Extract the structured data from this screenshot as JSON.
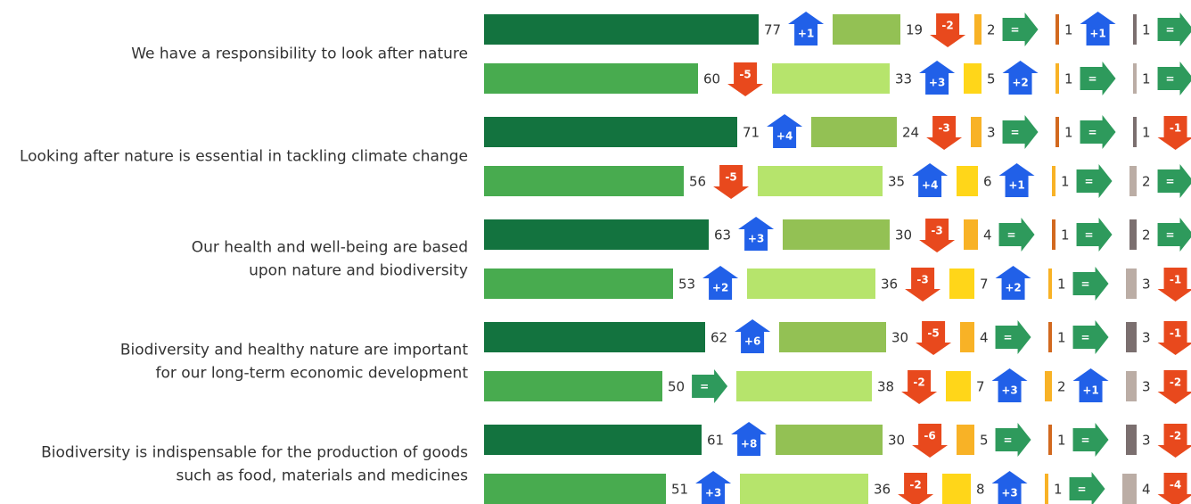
{
  "chart_data": {
    "type": "bar_change",
    "categories": [
      [
        "We have a responsibility to look after nature"
      ],
      [
        "Looking after nature is essential in tackling climate change"
      ],
      [
        "Our health and well-being are based",
        "upon nature and biodiversity"
      ],
      [
        "Biodiversity and healthy nature are important",
        "for our long-term economic development"
      ],
      [
        "Biodiversity is indispensable for the production of goods",
        "such as food, materials and medicines"
      ]
    ],
    "rows": [
      {
        "values": [
          77,
          19,
          2,
          1,
          1
        ],
        "changes": [
          1,
          -2,
          0,
          1,
          0
        ],
        "change_labels": [
          "+1",
          "-2",
          "=",
          "+1",
          "="
        ]
      },
      {
        "values": [
          60,
          33,
          5,
          1,
          1
        ],
        "changes": [
          -5,
          3,
          2,
          0,
          0
        ],
        "change_labels": [
          "-5",
          "+3",
          "+2",
          "=",
          "="
        ]
      },
      {
        "values": [
          71,
          24,
          3,
          1,
          1
        ],
        "changes": [
          4,
          -3,
          0,
          0,
          -1
        ],
        "change_labels": [
          "+4",
          "-3",
          "=",
          "=",
          "-1"
        ]
      },
      {
        "values": [
          56,
          35,
          6,
          1,
          2
        ],
        "changes": [
          -5,
          4,
          1,
          0,
          0
        ],
        "change_labels": [
          "-5",
          "+4",
          "+1",
          "=",
          "="
        ]
      },
      {
        "values": [
          63,
          30,
          4,
          1,
          2
        ],
        "changes": [
          3,
          -3,
          0,
          0,
          0
        ],
        "change_labels": [
          "+3",
          "-3",
          "=",
          "=",
          "="
        ]
      },
      {
        "values": [
          53,
          36,
          7,
          1,
          3
        ],
        "changes": [
          2,
          -3,
          2,
          0,
          -1
        ],
        "change_labels": [
          "+2",
          "-3",
          "+2",
          "=",
          "-1"
        ]
      },
      {
        "values": [
          62,
          30,
          4,
          1,
          3
        ],
        "changes": [
          6,
          -5,
          0,
          0,
          -1
        ],
        "change_labels": [
          "+6",
          "-5",
          "=",
          "=",
          "-1"
        ]
      },
      {
        "values": [
          50,
          38,
          7,
          2,
          3
        ],
        "changes": [
          0,
          -2,
          3,
          1,
          -2
        ],
        "change_labels": [
          "=",
          "-2",
          "+3",
          "+1",
          "-2"
        ]
      },
      {
        "values": [
          61,
          30,
          5,
          1,
          3
        ],
        "changes": [
          8,
          -6,
          0,
          0,
          -2
        ],
        "change_labels": [
          "+8",
          "-6",
          "=",
          "=",
          "-2"
        ]
      },
      {
        "values": [
          51,
          36,
          8,
          1,
          4
        ],
        "changes": [
          3,
          -2,
          3,
          0,
          -4
        ],
        "change_labels": [
          "+3",
          "-2",
          "+3",
          "=",
          "-4"
        ]
      }
    ],
    "colors": [
      [
        "#13733f",
        "#93c154",
        "#f8b226",
        "#d2691f",
        "#7b6f6f"
      ],
      [
        "#48ab4f",
        "#b6e46c",
        "#ffd619",
        "#f8b226",
        "#bbada5"
      ]
    ],
    "arrow_colors": {
      "up": "#2160e8",
      "down": "#e8491d",
      "same": "#2e9a5c"
    }
  }
}
